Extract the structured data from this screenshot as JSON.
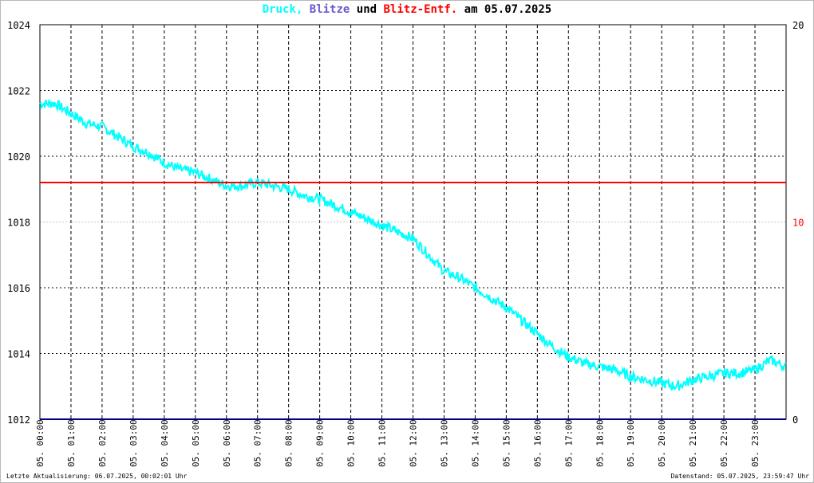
{
  "title": {
    "parts": [
      {
        "text": "Druck",
        "color": "#00ffff"
      },
      {
        "text": ", ",
        "color": "#00ffff"
      },
      {
        "text": "Blitze",
        "color": "#6a5acd"
      },
      {
        "text": " und ",
        "color": "#000000"
      },
      {
        "text": "Blitz-Entf.",
        "color": "#ff0000"
      },
      {
        "text": " am 05.07.2025",
        "color": "#000000"
      }
    ]
  },
  "footer": {
    "left": "Letzte Aktualisierung: 06.07.2025, 00:02:01 Uhr",
    "right": "Datenstand: 05.07.2025, 23:59:47 Uhr"
  },
  "colors": {
    "pressure": "#00ffff",
    "lightning_count": "#000080",
    "lightning_distance": "#ff0000",
    "grid": "#000000",
    "right_axis_mid": "#ff0000"
  },
  "chart_data": {
    "type": "line",
    "title": "Druck, Blitze und Blitz-Entf. am 05.07.2025",
    "x_tick_labels": [
      "05. 00:00",
      "05. 01:00",
      "05. 02:00",
      "05. 03:00",
      "05. 04:00",
      "05. 05:00",
      "05. 06:00",
      "05. 07:00",
      "05. 08:00",
      "05. 09:00",
      "05. 10:00",
      "05. 11:00",
      "05. 12:00",
      "05. 13:00",
      "05. 14:00",
      "05. 15:00",
      "05. 16:00",
      "05. 17:00",
      "05. 18:00",
      "05. 19:00",
      "05. 20:00",
      "05. 21:00",
      "05. 22:00",
      "05. 23:00"
    ],
    "x_range_hours": [
      0,
      24
    ],
    "y_left": {
      "range": [
        1012,
        1024
      ],
      "ticks": [
        "1012",
        "1014",
        "1016",
        "1018",
        "1020",
        "1022",
        "1024"
      ]
    },
    "y_right": {
      "range": [
        0,
        20
      ],
      "ticks": [
        "0",
        "10",
        "20"
      ]
    },
    "grid": true,
    "series": [
      {
        "name": "Druck",
        "axis": "left",
        "x_hours": [
          0,
          0.5,
          1,
          1.5,
          2,
          2.5,
          3,
          3.5,
          4,
          4.5,
          5,
          5.5,
          6,
          6.5,
          7,
          7.5,
          8,
          8.5,
          9,
          9.5,
          10,
          10.5,
          11,
          11.5,
          12,
          12.5,
          13,
          13.5,
          14,
          14.5,
          15,
          15.5,
          16,
          16.5,
          17,
          17.5,
          18,
          18.5,
          19,
          19.5,
          20,
          20.5,
          21,
          21.5,
          22,
          22.5,
          23,
          23.5,
          24
        ],
        "values": [
          1021.6,
          1021.6,
          1021.3,
          1021.0,
          1020.9,
          1020.6,
          1020.3,
          1020.1,
          1019.8,
          1019.6,
          1019.5,
          1019.3,
          1019.1,
          1019.1,
          1019.2,
          1019.1,
          1019.0,
          1018.8,
          1018.7,
          1018.5,
          1018.3,
          1018.1,
          1017.9,
          1017.7,
          1017.5,
          1017.0,
          1016.5,
          1016.3,
          1016.0,
          1015.7,
          1015.4,
          1015.0,
          1014.6,
          1014.2,
          1013.9,
          1013.7,
          1013.6,
          1013.5,
          1013.3,
          1013.2,
          1013.1,
          1013.0,
          1013.2,
          1013.3,
          1013.4,
          1013.4,
          1013.5,
          1013.8,
          1013.6
        ]
      },
      {
        "name": "Blitze",
        "axis": "right",
        "x_hours": [
          0,
          24
        ],
        "values": [
          0,
          0
        ]
      },
      {
        "name": "Blitz-Entf.",
        "axis": "right",
        "x_hours": [
          0,
          24
        ],
        "values": [
          12,
          12
        ]
      }
    ]
  }
}
